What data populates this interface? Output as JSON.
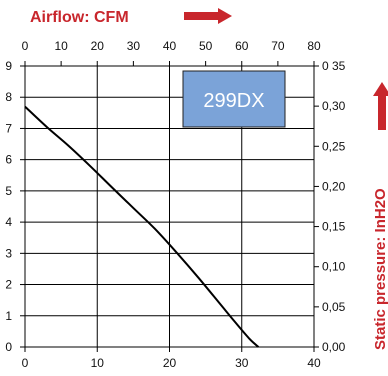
{
  "chart_data": {
    "type": "line",
    "header_left": "Airflow: CFM",
    "header_right": "Static pressure: InH2O",
    "model_label": "299DX",
    "model_label_bg": "#7ba3d8",
    "accent_color": "#c8262c",
    "x_bottom": {
      "min": 0,
      "max": 40,
      "ticks": [
        "0",
        "10",
        "20",
        "30",
        "40"
      ]
    },
    "x_top": {
      "min": 0,
      "max": 80,
      "ticks": [
        "0",
        "10",
        "20",
        "30",
        "40",
        "50",
        "60",
        "70",
        "80"
      ]
    },
    "y_left": {
      "min": 0,
      "max": 9,
      "ticks": [
        "0",
        "1",
        "2",
        "3",
        "4",
        "5",
        "6",
        "7",
        "8",
        "9"
      ]
    },
    "y_right": {
      "min": 0,
      "max": 0.35,
      "ticks": [
        "0,00",
        "0,05",
        "0,10",
        "0,15",
        "0,20",
        "0,25",
        "0,30",
        "0 35"
      ]
    },
    "grid": true,
    "series": [
      {
        "color": "#000000",
        "x": [
          0,
          3,
          6,
          9,
          12,
          15,
          18,
          21,
          24,
          27,
          29,
          31,
          32.3
        ],
        "y": [
          7.7,
          7.05,
          6.45,
          5.8,
          5.12,
          4.45,
          3.78,
          3.02,
          2.22,
          1.38,
          0.82,
          0.28,
          0
        ]
      }
    ]
  }
}
